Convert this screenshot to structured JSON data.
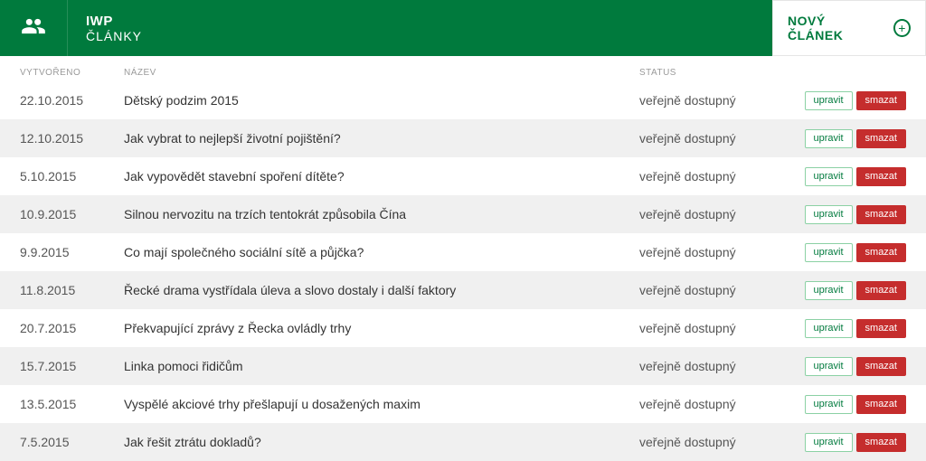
{
  "colors": {
    "primary": "#007a3d",
    "danger": "#c52d2d",
    "row_alt": "#f0f0f0",
    "header_text": "#ffffff",
    "muted_text": "#9a9a9a"
  },
  "header": {
    "brand": "IWP",
    "section": "ČLÁNKY",
    "new_button": "NOVÝ ČLÁNEK"
  },
  "columns": {
    "created": "VYTVOŘENO",
    "title": "NÁZEV",
    "status": "STATUS"
  },
  "buttons": {
    "edit": "upravit",
    "delete": "smazat"
  },
  "status_public": "veřejně dostupný",
  "articles": [
    {
      "date": "22.10.2015",
      "title": "Dětský podzim 2015",
      "status": "veřejně dostupný"
    },
    {
      "date": "12.10.2015",
      "title": "Jak vybrat to nejlepší životní pojištění?",
      "status": "veřejně dostupný"
    },
    {
      "date": "5.10.2015",
      "title": "Jak vypovědět stavební spoření dítěte?",
      "status": "veřejně dostupný"
    },
    {
      "date": "10.9.2015",
      "title": "Silnou nervozitu na trzích tentokrát způsobila Čína",
      "status": "veřejně dostupný"
    },
    {
      "date": "9.9.2015",
      "title": "Co mají společného sociální sítě a půjčka?",
      "status": "veřejně dostupný"
    },
    {
      "date": "11.8.2015",
      "title": "Řecké drama vystřídala úleva a slovo dostaly i další faktory",
      "status": "veřejně dostupný"
    },
    {
      "date": "20.7.2015",
      "title": "Překvapující zprávy z Řecka ovládly trhy",
      "status": "veřejně dostupný"
    },
    {
      "date": "15.7.2015",
      "title": "Linka pomoci řidičům",
      "status": "veřejně dostupný"
    },
    {
      "date": "13.5.2015",
      "title": "Vyspělé akciové trhy přešlapují u dosažených maxim",
      "status": "veřejně dostupný"
    },
    {
      "date": "7.5.2015",
      "title": "Jak řešit ztrátu dokladů?",
      "status": "veřejně dostupný"
    }
  ]
}
